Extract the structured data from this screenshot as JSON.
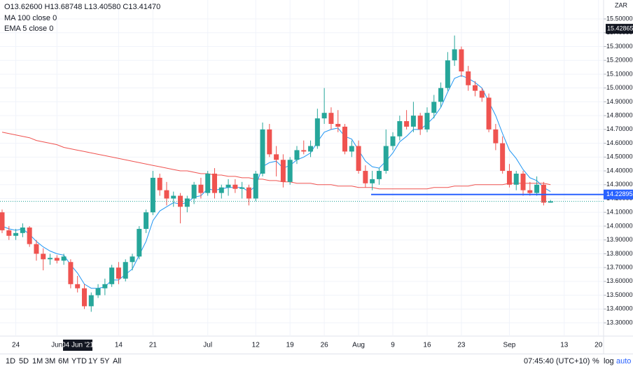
{
  "chart_data": {
    "type": "candlestick",
    "ohlc_legend": "O13.62600 H13.68748 L13.40580 C13.41470",
    "symbol": "ZAR",
    "crosshair_label": "04 Jun '21",
    "up_color": "#26a69a",
    "down_color": "#ef5350",
    "ylim": [
      13.204,
      15.637
    ],
    "yticks": [
      {
        "value": 13.3,
        "label": "13.30000"
      },
      {
        "value": 13.4,
        "label": "13.40000"
      },
      {
        "value": 13.5,
        "label": "13.50000"
      },
      {
        "value": 13.6,
        "label": "13.60000"
      },
      {
        "value": 13.7,
        "label": "13.70000"
      },
      {
        "value": 13.8,
        "label": "13.80000"
      },
      {
        "value": 13.9,
        "label": "13.90000"
      },
      {
        "value": 14.0,
        "label": "14.00000"
      },
      {
        "value": 14.1,
        "label": "14.10000"
      },
      {
        "value": 14.2,
        "label": "14.20000"
      },
      {
        "value": 14.3,
        "label": "14.30000"
      },
      {
        "value": 14.4,
        "label": "14.40000"
      },
      {
        "value": 14.5,
        "label": "14.50000"
      },
      {
        "value": 14.6,
        "label": "14.60000"
      },
      {
        "value": 14.7,
        "label": "14.70000"
      },
      {
        "value": 14.8,
        "label": "14.80000"
      },
      {
        "value": 14.9,
        "label": "14.90000"
      },
      {
        "value": 15.0,
        "label": "15.00000"
      },
      {
        "value": 15.1,
        "label": "15.10000"
      },
      {
        "value": 15.2,
        "label": "15.20000"
      },
      {
        "value": 15.3,
        "label": "15.30000"
      },
      {
        "value": 15.4,
        "label": "15.40000"
      },
      {
        "value": 15.5,
        "label": "15.50000"
      }
    ],
    "grid": true,
    "categories": [
      null,
      null,
      "24",
      null,
      null,
      null,
      null,
      null,
      "Jun",
      null,
      null,
      null,
      null,
      null,
      null,
      null,
      null,
      "14",
      null,
      null,
      null,
      null,
      "21",
      null,
      null,
      null,
      null,
      null,
      null,
      null,
      "Jul",
      null,
      null,
      null,
      null,
      null,
      null,
      "12",
      null,
      null,
      null,
      null,
      "19",
      null,
      null,
      null,
      null,
      "26",
      null,
      null,
      null,
      null,
      "Aug",
      null,
      null,
      null,
      null,
      "9",
      null,
      null,
      null,
      null,
      "16",
      null,
      null,
      null,
      null,
      "23",
      null,
      null,
      null,
      null,
      null,
      null,
      "Sep",
      null,
      null,
      null,
      null,
      null,
      null,
      null,
      "13",
      null,
      null,
      null,
      null,
      "20"
    ],
    "ohlc": [
      [
        14.1,
        14.12,
        13.95,
        13.97
      ],
      [
        13.97,
        14.0,
        13.9,
        13.93
      ],
      [
        13.93,
        13.98,
        13.9,
        13.95
      ],
      [
        13.95,
        14.02,
        13.92,
        13.99
      ],
      [
        13.99,
        14.0,
        13.85,
        13.87
      ],
      [
        13.87,
        13.9,
        13.75,
        13.8
      ],
      [
        13.8,
        13.84,
        13.68,
        13.76
      ],
      [
        13.76,
        13.8,
        13.72,
        13.77
      ],
      [
        13.77,
        13.79,
        13.73,
        13.75
      ],
      [
        13.75,
        13.8,
        13.72,
        13.78
      ],
      [
        13.74,
        13.76,
        13.55,
        13.58
      ],
      [
        13.58,
        13.64,
        13.52,
        13.55
      ],
      [
        13.55,
        13.58,
        13.4,
        13.42
      ],
      [
        13.42,
        13.52,
        13.38,
        13.5
      ],
      [
        13.5,
        13.58,
        13.48,
        13.55
      ],
      [
        13.55,
        13.62,
        13.5,
        13.58
      ],
      [
        13.58,
        13.72,
        13.56,
        13.7
      ],
      [
        13.7,
        13.74,
        13.58,
        13.62
      ],
      [
        13.62,
        13.76,
        13.6,
        13.74
      ],
      [
        13.74,
        13.8,
        13.68,
        13.78
      ],
      [
        13.78,
        14.0,
        13.76,
        13.98
      ],
      [
        13.98,
        14.12,
        13.95,
        14.1
      ],
      [
        14.1,
        14.4,
        14.08,
        14.35
      ],
      [
        14.35,
        14.38,
        14.22,
        14.26
      ],
      [
        14.26,
        14.32,
        14.15,
        14.2
      ],
      [
        14.2,
        14.25,
        14.14,
        14.22
      ],
      [
        14.22,
        14.24,
        14.02,
        14.14
      ],
      [
        14.14,
        14.22,
        14.1,
        14.2
      ],
      [
        14.2,
        14.32,
        14.16,
        14.3
      ],
      [
        14.3,
        14.35,
        14.2,
        14.24
      ],
      [
        14.24,
        14.4,
        14.22,
        14.38
      ],
      [
        14.38,
        14.42,
        14.2,
        14.24
      ],
      [
        14.24,
        14.3,
        14.2,
        14.28
      ],
      [
        14.28,
        14.34,
        14.22,
        14.3
      ],
      [
        14.3,
        14.34,
        14.24,
        14.27
      ],
      [
        14.27,
        14.32,
        14.2,
        14.28
      ],
      [
        14.28,
        14.3,
        14.15,
        14.2
      ],
      [
        14.2,
        14.4,
        14.18,
        14.38
      ],
      [
        14.38,
        14.75,
        14.36,
        14.7
      ],
      [
        14.7,
        14.74,
        14.5,
        14.52
      ],
      [
        14.52,
        14.58,
        14.36,
        14.48
      ],
      [
        14.48,
        14.52,
        14.28,
        14.32
      ],
      [
        14.32,
        14.5,
        14.3,
        14.48
      ],
      [
        14.48,
        14.58,
        14.45,
        14.55
      ],
      [
        14.55,
        14.62,
        14.52,
        14.54
      ],
      [
        14.54,
        14.62,
        14.5,
        14.58
      ],
      [
        14.58,
        14.85,
        14.56,
        14.78
      ],
      [
        14.78,
        15.0,
        14.74,
        14.82
      ],
      [
        14.82,
        14.86,
        14.7,
        14.74
      ],
      [
        14.74,
        14.84,
        14.68,
        14.72
      ],
      [
        14.72,
        14.74,
        14.52,
        14.54
      ],
      [
        14.54,
        14.62,
        14.5,
        14.58
      ],
      [
        14.58,
        14.62,
        14.38,
        14.4
      ],
      [
        14.4,
        14.44,
        14.28,
        14.31
      ],
      [
        14.31,
        14.4,
        14.26,
        14.34
      ],
      [
        14.34,
        14.42,
        14.3,
        14.4
      ],
      [
        14.4,
        14.7,
        14.38,
        14.58
      ],
      [
        14.58,
        14.68,
        14.55,
        14.65
      ],
      [
        14.65,
        14.8,
        14.62,
        14.76
      ],
      [
        14.76,
        14.84,
        14.7,
        14.72
      ],
      [
        14.72,
        14.9,
        14.68,
        14.8
      ],
      [
        14.8,
        14.82,
        14.66,
        14.7
      ],
      [
        14.7,
        14.86,
        14.68,
        14.82
      ],
      [
        14.82,
        14.95,
        14.78,
        14.9
      ],
      [
        14.9,
        15.04,
        14.86,
        15.0
      ],
      [
        15.0,
        15.26,
        14.98,
        15.2
      ],
      [
        15.2,
        15.38,
        15.16,
        15.28
      ],
      [
        15.28,
        15.3,
        15.08,
        15.12
      ],
      [
        15.12,
        15.16,
        14.98,
        15.02
      ],
      [
        15.02,
        15.05,
        14.94,
        14.98
      ],
      [
        14.98,
        15.0,
        14.9,
        14.93
      ],
      [
        14.93,
        14.96,
        14.68,
        14.7
      ],
      [
        14.7,
        14.74,
        14.55,
        14.6
      ],
      [
        14.6,
        14.65,
        14.38,
        14.4
      ],
      [
        14.4,
        14.45,
        14.28,
        14.3
      ],
      [
        14.3,
        14.4,
        14.26,
        14.38
      ],
      [
        14.38,
        14.4,
        14.22,
        14.26
      ],
      [
        14.26,
        14.32,
        14.22,
        14.24
      ],
      [
        14.24,
        14.36,
        14.22,
        14.3
      ],
      [
        14.3,
        14.32,
        14.15,
        14.17
      ],
      [
        14.17,
        14.19,
        14.17,
        14.18
      ],
      null,
      null,
      null,
      null,
      null,
      null,
      null
    ],
    "series": [
      {
        "name": "MA 100 close 0",
        "color": "#ef5350",
        "values": [
          14.68,
          14.67,
          14.66,
          14.65,
          14.64,
          14.62,
          14.61,
          14.6,
          14.59,
          14.57,
          14.56,
          14.55,
          14.54,
          14.53,
          14.52,
          14.51,
          14.5,
          14.49,
          14.48,
          14.47,
          14.46,
          14.45,
          14.44,
          14.43,
          14.42,
          14.41,
          14.4,
          14.4,
          14.39,
          14.38,
          14.38,
          14.37,
          14.37,
          14.36,
          14.36,
          14.35,
          14.35,
          14.34,
          14.34,
          14.33,
          14.33,
          14.32,
          14.32,
          14.31,
          14.31,
          14.31,
          14.3,
          14.3,
          14.3,
          14.29,
          14.29,
          14.29,
          14.28,
          14.28,
          14.28,
          14.27,
          14.27,
          14.27,
          14.27,
          14.27,
          14.27,
          14.27,
          14.27,
          14.28,
          14.28,
          14.28,
          14.29,
          14.29,
          14.29,
          14.3,
          14.3,
          14.3,
          14.3,
          14.3,
          14.31,
          14.31,
          14.31,
          14.31,
          14.31,
          14.31,
          14.3,
          null,
          null,
          null,
          null,
          null,
          null,
          null
        ]
      },
      {
        "name": "EMA 5 close 0",
        "color": "#2196f3",
        "values": [
          14.0,
          13.98,
          13.97,
          13.98,
          13.94,
          13.89,
          13.85,
          13.82,
          13.8,
          13.79,
          13.72,
          13.66,
          13.58,
          13.55,
          13.55,
          13.56,
          13.61,
          13.61,
          13.65,
          13.69,
          13.79,
          13.89,
          14.04,
          14.11,
          14.14,
          14.17,
          14.16,
          14.17,
          14.21,
          14.22,
          14.27,
          14.26,
          14.27,
          14.28,
          14.28,
          14.28,
          14.25,
          14.29,
          14.43,
          14.46,
          14.47,
          14.42,
          14.44,
          14.48,
          14.5,
          14.53,
          14.61,
          14.68,
          14.7,
          14.71,
          14.65,
          14.63,
          14.55,
          14.47,
          14.43,
          14.42,
          14.47,
          14.53,
          14.61,
          14.65,
          14.7,
          14.7,
          14.74,
          14.79,
          14.86,
          14.97,
          15.07,
          15.09,
          15.07,
          15.04,
          15.0,
          14.9,
          14.8,
          14.67,
          14.55,
          14.49,
          14.41,
          14.35,
          14.33,
          14.28,
          14.25,
          null,
          null,
          null,
          null,
          null,
          null,
          null
        ]
      }
    ],
    "horizontal_ray": {
      "value": 14.22895,
      "label": "14.22895",
      "color": "#2962ff"
    },
    "marker_price": {
      "value": 15.42865,
      "label": "15.42865"
    },
    "current_price": 14.18,
    "toolbar": {
      "ranges": [
        "1D",
        "5D",
        "1M",
        "3M",
        "6M",
        "YTD",
        "1Y",
        "5Y",
        "All"
      ],
      "time": "07:45:40 (UTC+10)",
      "percent": "%",
      "log": "log",
      "auto": "auto"
    }
  }
}
